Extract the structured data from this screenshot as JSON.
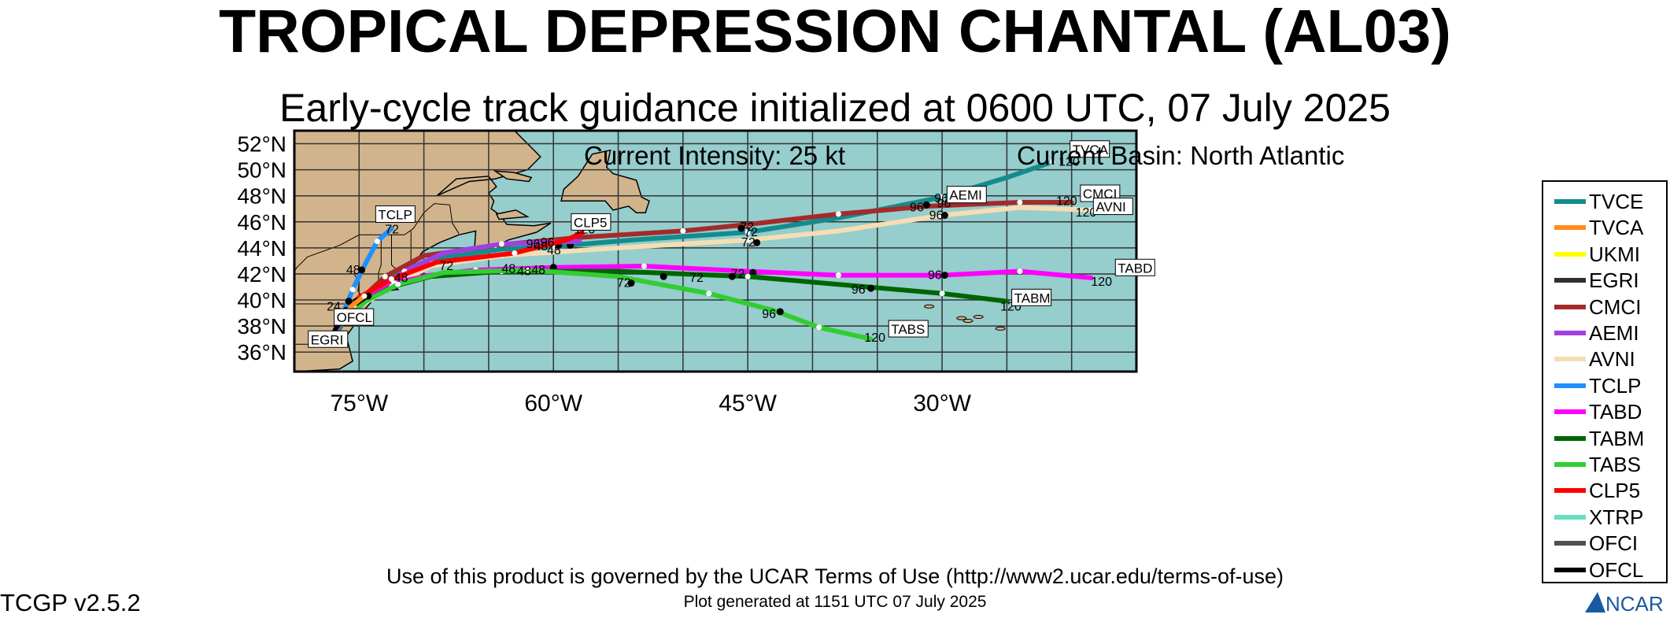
{
  "header": {
    "title": "TROPICAL DEPRESSION CHANTAL (AL03)",
    "subtitle": "Early-cycle track guidance initialized at 0600 UTC, 07 July 2025",
    "current_intensity": "Current Intensity: 25 kt",
    "current_basin": "Current Basin: North Atlantic"
  },
  "footer": {
    "terms": "Use of this product is governed by the UCAR Terms of Use (http://www2.ucar.edu/terms-of-use)",
    "generated": "Plot generated at 1151 UTC   07 July 2025",
    "version": "TCGP v2.5.2",
    "logo_text": "NCAR"
  },
  "map": {
    "lon_range": [
      -80,
      -15
    ],
    "lat_range": [
      34.5,
      53
    ],
    "lon_ticks": [
      {
        "lon": -75,
        "label": "75°W"
      },
      {
        "lon": -60,
        "label": "60°W"
      },
      {
        "lon": -45,
        "label": "45°W"
      },
      {
        "lon": -30,
        "label": "30°W"
      }
    ],
    "lat_ticks": [
      {
        "lat": 52,
        "label": "52°N"
      },
      {
        "lat": 50,
        "label": "50°N"
      },
      {
        "lat": 48,
        "label": "48°N"
      },
      {
        "lat": 46,
        "label": "46°N"
      },
      {
        "lat": 44,
        "label": "44°N"
      },
      {
        "lat": 42,
        "label": "42°N"
      },
      {
        "lat": 40,
        "label": "40°N"
      },
      {
        "lat": 38,
        "label": "38°N"
      },
      {
        "lat": 36,
        "label": "36°N"
      }
    ],
    "grid": true,
    "ocean_color": "#96cdcd",
    "land_color": "#d2b48c"
  },
  "legend": [
    {
      "name": "TVCE",
      "color": "#138c8c"
    },
    {
      "name": "TVCA",
      "color": "#ff8c1a"
    },
    {
      "name": "UKMI",
      "color": "#ffff00"
    },
    {
      "name": "EGRI",
      "color": "#303030"
    },
    {
      "name": "CMCI",
      "color": "#a52a2a"
    },
    {
      "name": "AEMI",
      "color": "#a040e0"
    },
    {
      "name": "AVNI",
      "color": "#f5deb3"
    },
    {
      "name": "TCLP",
      "color": "#1e90ff"
    },
    {
      "name": "TABD",
      "color": "#ff00ff"
    },
    {
      "name": "TABM",
      "color": "#006400"
    },
    {
      "name": "TABS",
      "color": "#32cd32"
    },
    {
      "name": "CLP5",
      "color": "#ff0000"
    },
    {
      "name": "XTRP",
      "color": "#66e0c0"
    },
    {
      "name": "OFCI",
      "color": "#505050"
    },
    {
      "name": "OFCL",
      "color": "#000000"
    }
  ],
  "tracks": [
    {
      "name": "TVCE",
      "color": "#138c8c",
      "points": [
        [
          -77,
          36.8
        ],
        [
          -76,
          38.8
        ],
        [
          -74.6,
          40.3
        ],
        [
          -73,
          41.7
        ],
        [
          -69.5,
          43.1
        ],
        [
          -64,
          43.9
        ],
        [
          -60,
          44.1
        ],
        [
          -54,
          44.6
        ],
        [
          -45,
          45.2
        ],
        [
          -38,
          46.3
        ],
        [
          -30,
          47.9
        ],
        [
          -25,
          49.4
        ],
        [
          -21.5,
          50.6
        ]
      ],
      "label": "",
      "dots": [
        [
          -59.6,
          44.2
        ],
        [
          -58.7,
          44.2
        ]
      ],
      "hour_labels": []
    },
    {
      "name": "CMCI",
      "color": "#a52a2a",
      "points": [
        [
          -76.3,
          38.8
        ],
        [
          -74.5,
          40.4
        ],
        [
          -73,
          41.8
        ],
        [
          -70,
          43.4
        ],
        [
          -64.5,
          44.2
        ],
        [
          -58,
          44.8
        ],
        [
          -50,
          45.3
        ],
        [
          -45,
          45.8
        ],
        [
          -38,
          46.6
        ],
        [
          -31,
          47.2
        ],
        [
          -24,
          47.5
        ],
        [
          -20,
          47.5
        ]
      ],
      "label": "CMCI",
      "label_pos": [
        -19.2,
        47.8
      ],
      "dots": [
        [
          -60.6,
          44.3
        ],
        [
          -45.5,
          45.5
        ],
        [
          -31.2,
          47.3
        ]
      ],
      "hour_labels": [
        {
          "t": "96",
          "lon": -32.5,
          "lat": 46.8
        },
        {
          "t": "120",
          "lon": -21.2,
          "lat": 47.3
        }
      ]
    },
    {
      "name": "AEMI",
      "color": "#a040e0",
      "points": [
        [
          -76.2,
          38.7
        ],
        [
          -74.3,
          40.3
        ],
        [
          -71.5,
          42.2
        ],
        [
          -68.5,
          43.6
        ],
        [
          -64,
          44.3
        ],
        [
          -58,
          44.5
        ]
      ],
      "label": "AEMI",
      "label_pos": [
        -29.5,
        47.7
      ],
      "dots": [
        [
          -67.5,
          43.0
        ]
      ],
      "hour_labels": [
        {
          "t": "96",
          "lon": -30.6,
          "lat": 47.5
        },
        {
          "t": "96",
          "lon": -30.4,
          "lat": 47.1
        }
      ]
    },
    {
      "name": "AVNI",
      "color": "#f5deb3",
      "points": [
        [
          -76.5,
          38.2
        ],
        [
          -75,
          39.5
        ],
        [
          -72.5,
          41
        ],
        [
          -69.5,
          42.6
        ],
        [
          -64,
          43.4
        ],
        [
          -55,
          44
        ],
        [
          -45,
          44.6
        ],
        [
          -38,
          45.3
        ],
        [
          -30,
          46.5
        ],
        [
          -24,
          47.1
        ],
        [
          -18.5,
          46.9
        ]
      ],
      "label": "AVNI",
      "label_pos": [
        -18.2,
        46.8
      ],
      "dots": [
        [
          -44.3,
          44.4
        ],
        [
          -29.8,
          46.5
        ]
      ],
      "hour_labels": [
        {
          "t": "72",
          "lon": -45.5,
          "lat": 44.1
        },
        {
          "t": "96",
          "lon": -31,
          "lat": 46.2
        },
        {
          "t": "120",
          "lon": -19.7,
          "lat": 46.4
        }
      ]
    },
    {
      "name": "TCLP",
      "color": "#1e90ff",
      "points": [
        [
          -77,
          37
        ],
        [
          -76.3,
          38.8
        ],
        [
          -75.5,
          40.8
        ],
        [
          -74.5,
          42.8
        ],
        [
          -73.6,
          44.5
        ],
        [
          -72.5,
          45.5
        ]
      ],
      "label": "TCLP",
      "label_pos": [
        -73.6,
        46.2
      ],
      "dots": [
        [
          -74.8,
          42.3
        ],
        [
          -75.8,
          39.9
        ]
      ],
      "hour_labels": [
        {
          "t": "72",
          "lon": -73,
          "lat": 45.1
        },
        {
          "t": "48",
          "lon": -76,
          "lat": 42
        },
        {
          "t": "24",
          "lon": -77.5,
          "lat": 39.2
        }
      ]
    },
    {
      "name": "TABD",
      "color": "#ff00ff",
      "points": [
        [
          -76.8,
          37.8
        ],
        [
          -74.5,
          40
        ],
        [
          -72.3,
          41.3
        ],
        [
          -69.5,
          41.9
        ],
        [
          -66,
          42.3
        ],
        [
          -60,
          42.5
        ],
        [
          -53,
          42.6
        ],
        [
          -45,
          42.2
        ],
        [
          -38,
          41.9
        ],
        [
          -30,
          41.9
        ],
        [
          -24,
          42.2
        ],
        [
          -18.5,
          41.7
        ]
      ],
      "label": "TABD",
      "label_pos": [
        -16.5,
        42.1
      ],
      "dots": [
        [
          -60,
          42.5
        ],
        [
          -44.6,
          42.1
        ],
        [
          -29.8,
          41.9
        ]
      ],
      "hour_labels": [
        {
          "t": "72",
          "lon": -46.3,
          "lat": 41.7
        },
        {
          "t": "96",
          "lon": -31.1,
          "lat": 41.6
        },
        {
          "t": "120",
          "lon": -18.5,
          "lat": 41.1
        }
      ]
    },
    {
      "name": "TABM",
      "color": "#006400",
      "points": [
        [
          -76.5,
          38.2
        ],
        [
          -74.7,
          39.8
        ],
        [
          -72.5,
          41
        ],
        [
          -69.5,
          41.8
        ],
        [
          -64,
          42.2
        ],
        [
          -55,
          42.2
        ],
        [
          -45,
          41.8
        ],
        [
          -38,
          41.2
        ],
        [
          -30,
          40.5
        ],
        [
          -25,
          39.9
        ]
      ],
      "label": "TABM",
      "label_pos": [
        -24.5,
        39.8
      ],
      "dots": [
        [
          -51.5,
          41.8
        ],
        [
          -46.2,
          41.8
        ],
        [
          -35.5,
          40.9
        ]
      ],
      "hour_labels": [
        {
          "t": "72",
          "lon": -49.5,
          "lat": 41.4
        },
        {
          "t": "96",
          "lon": -37,
          "lat": 40.5
        },
        {
          "t": "120",
          "lon": -25.5,
          "lat": 39.2
        }
      ]
    },
    {
      "name": "TABS",
      "color": "#32cd32",
      "points": [
        [
          -76,
          38.6
        ],
        [
          -74.5,
          39.9
        ],
        [
          -72,
          41.2
        ],
        [
          -68.5,
          42.1
        ],
        [
          -62,
          42.3
        ],
        [
          -55,
          41.8
        ],
        [
          -48,
          40.5
        ],
        [
          -43,
          39.2
        ],
        [
          -39.5,
          37.9
        ],
        [
          -35.5,
          37
        ]
      ],
      "label": "TABS",
      "label_pos": [
        -34,
        37.4
      ],
      "dots": [
        [
          -54,
          41.3
        ],
        [
          -42.5,
          39.1
        ]
      ],
      "hour_labels": [
        {
          "t": "72",
          "lon": -55.1,
          "lat": 41
        },
        {
          "t": "96",
          "lon": -43.9,
          "lat": 38.6
        },
        {
          "t": "120",
          "lon": -36,
          "lat": 36.8
        }
      ]
    },
    {
      "name": "CLP5",
      "color": "#ff0000",
      "points": [
        [
          -76.6,
          38
        ],
        [
          -75,
          40.2
        ],
        [
          -72.5,
          41.6
        ],
        [
          -69,
          42.9
        ],
        [
          -63,
          43.6
        ],
        [
          -59,
          44.6
        ],
        [
          -57.5,
          45.3
        ]
      ],
      "label": "CLP5",
      "label_pos": [
        -58.5,
        45.6
      ],
      "dots": [],
      "hour_labels": [
        {
          "t": "120",
          "lon": -58.4,
          "lat": 45.1
        },
        {
          "t": "96",
          "lon": -61,
          "lat": 44.1
        },
        {
          "t": "48",
          "lon": -60.5,
          "lat": 43.5
        }
      ]
    },
    {
      "name": "OFCL",
      "color": "#000000",
      "points": [
        [
          -76.9,
          37.6
        ],
        [
          -76.3,
          38.8
        ],
        [
          -75.4,
          39.6
        ],
        [
          -74.5,
          40.2
        ]
      ],
      "label": "OFCL",
      "label_pos": [
        -76.8,
        38.3
      ],
      "dots": [
        [
          -76,
          39.2
        ],
        [
          -75.2,
          39.9
        ],
        [
          -74.3,
          40.3
        ]
      ],
      "hour_labels": [
        {
          "t": "48",
          "lon": -61.7,
          "lat": 42
        }
      ]
    },
    {
      "name": "EGRI",
      "color": "#303030",
      "points": [
        [
          -77.2,
          36.8
        ],
        [
          -76.9,
          37.4
        ]
      ],
      "label": "EGRI",
      "label_pos": [
        -78.8,
        36.6
      ],
      "dots": [],
      "hour_labels": []
    },
    {
      "name": "TVCA",
      "color": "#ff8c1a",
      "points": [
        [
          -76.5,
          38.4
        ],
        [
          -75.5,
          39.6
        ],
        [
          -74.6,
          40.3
        ]
      ],
      "label": "TVCA",
      "label_pos": [
        -20,
        51.2
      ],
      "dots": [],
      "hour_labels": [
        {
          "t": "120",
          "lon": -21,
          "lat": 50.3
        }
      ]
    }
  ],
  "map_extra_labels": [
    {
      "t": "48",
      "lon": -61.5,
      "lat": 43.8
    },
    {
      "t": "48",
      "lon": -64,
      "lat": 42.1
    },
    {
      "t": "48",
      "lon": -62.8,
      "lat": 41.9
    },
    {
      "t": "72",
      "lon": -68.8,
      "lat": 42.3
    },
    {
      "t": "72",
      "lon": -45.6,
      "lat": 45.3
    },
    {
      "t": "72",
      "lon": -45.3,
      "lat": 44.9
    },
    {
      "t": "96",
      "lon": -62.1,
      "lat": 44
    },
    {
      "t": "48",
      "lon": -72.3,
      "lat": 41.4
    }
  ]
}
